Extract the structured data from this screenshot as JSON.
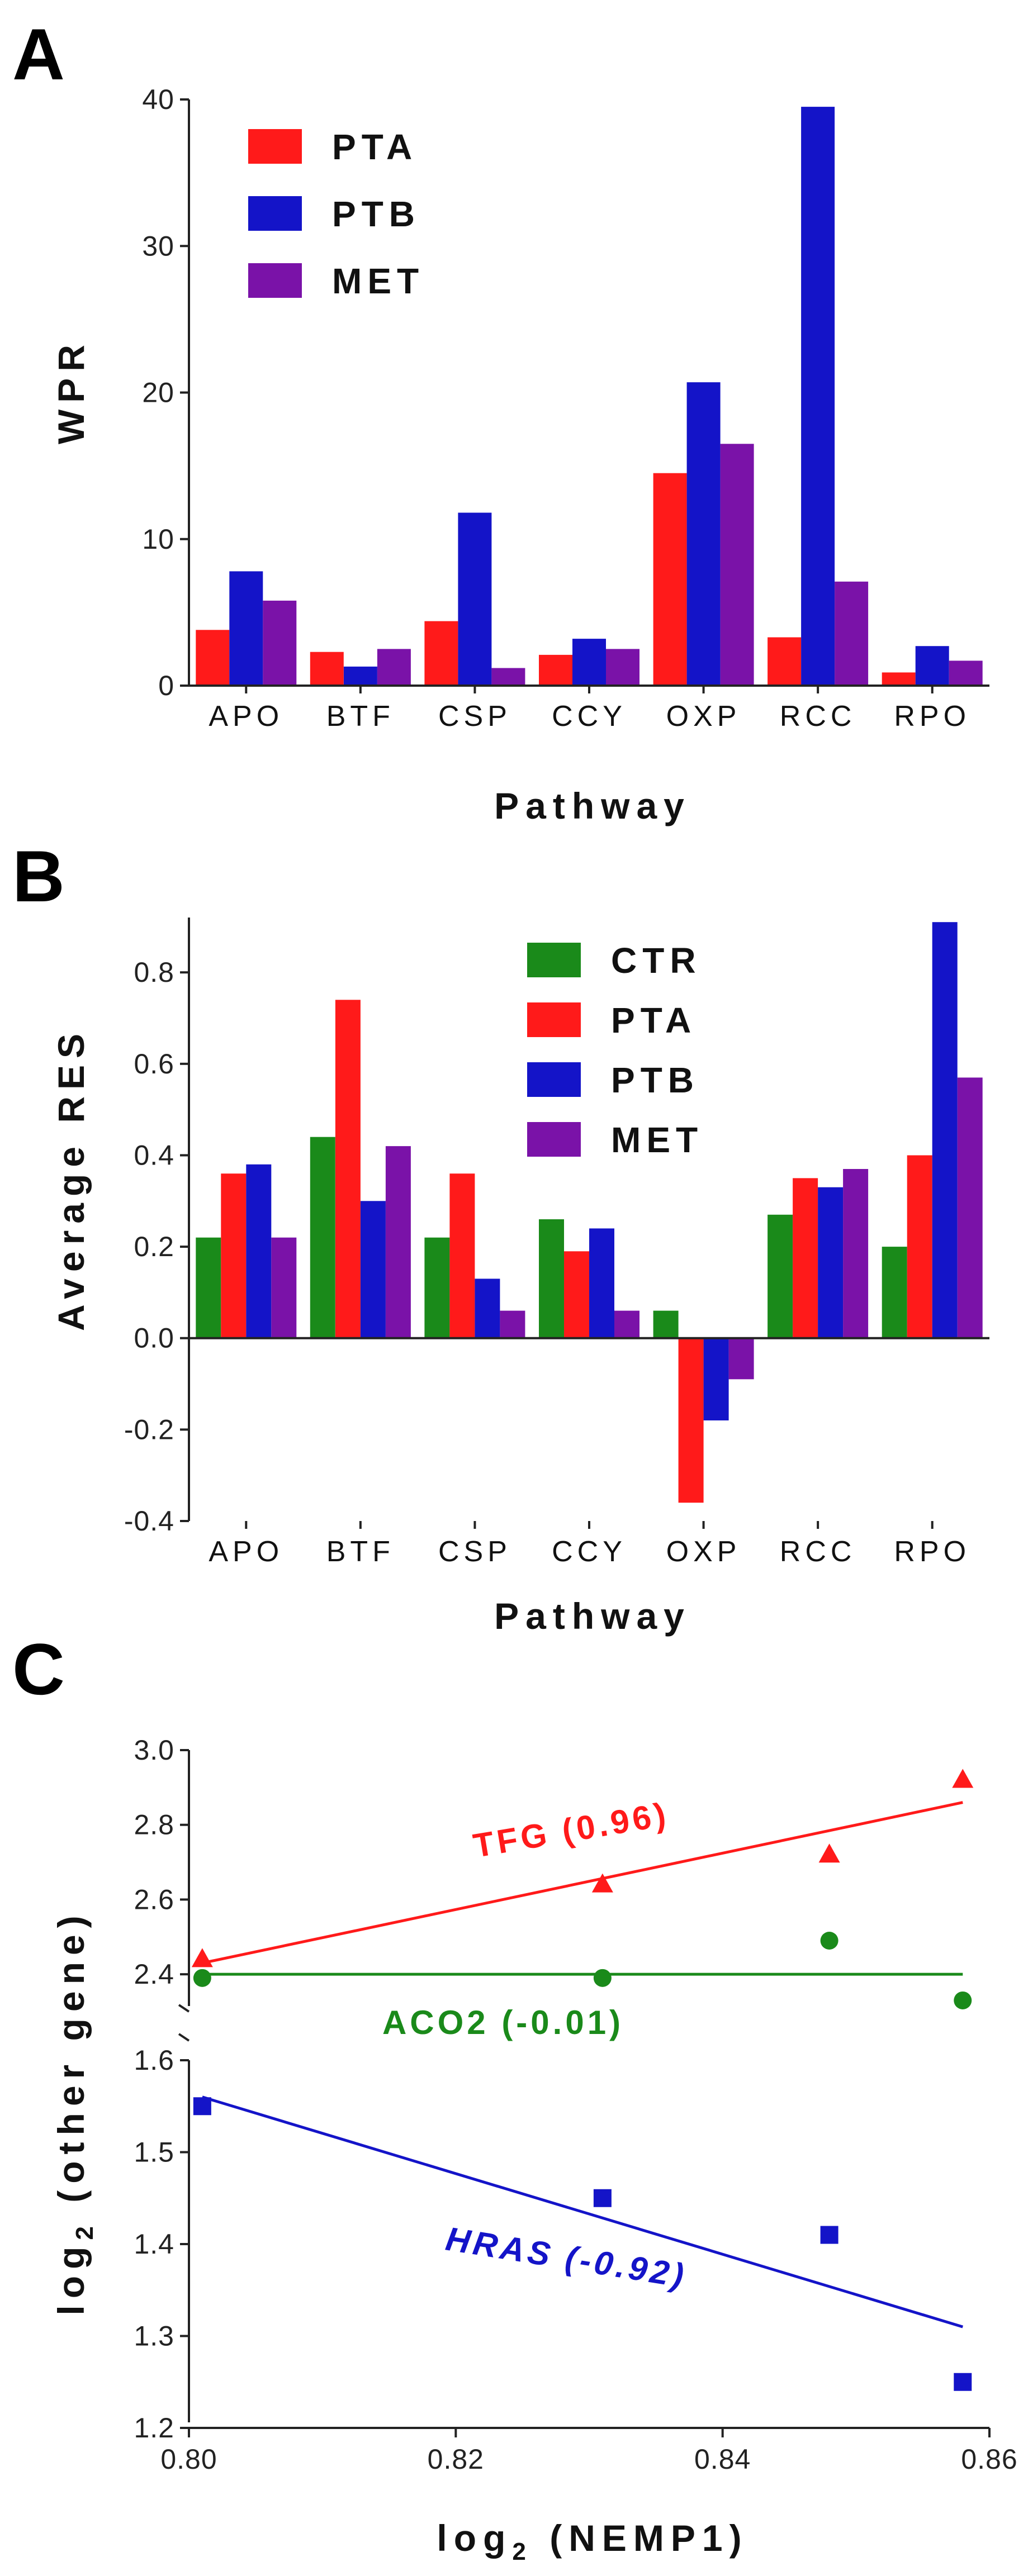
{
  "panels": {
    "a": "A",
    "b": "B",
    "c": "C"
  },
  "colors": {
    "CTR": "#1a8a1a",
    "PTA": "#ff1a1a",
    "PTB": "#1414c8",
    "MET": "#7a12a8"
  },
  "chart_data": [
    {
      "type": "bar",
      "panel": "A",
      "title": "",
      "xlabel": "Pathway",
      "ylabel": "WPR",
      "ylim": [
        0,
        40
      ],
      "yticks": [
        {
          "value": 0,
          "label": "0"
        },
        {
          "value": 10,
          "label": "10"
        },
        {
          "value": 20,
          "label": "20"
        },
        {
          "value": 30,
          "label": "30"
        },
        {
          "value": 40,
          "label": "40"
        }
      ],
      "categories": [
        "APO",
        "BTF",
        "CSP",
        "CCY",
        "OXP",
        "RCC",
        "RPO"
      ],
      "legend_position": "top-left",
      "series": [
        {
          "name": "PTA",
          "color": "#ff1a1a",
          "values": [
            3.8,
            2.3,
            4.4,
            2.1,
            14.5,
            3.3,
            0.9
          ]
        },
        {
          "name": "PTB",
          "color": "#1414c8",
          "values": [
            7.8,
            1.3,
            11.8,
            3.2,
            20.7,
            39.5,
            2.7
          ]
        },
        {
          "name": "MET",
          "color": "#7a12a8",
          "values": [
            5.8,
            2.5,
            1.2,
            2.5,
            16.5,
            7.1,
            1.7
          ]
        }
      ]
    },
    {
      "type": "bar",
      "panel": "B",
      "title": "",
      "xlabel": "Pathway",
      "ylabel": "Average RES",
      "ylim": [
        -0.4,
        0.92
      ],
      "yticks": [
        {
          "value": -0.4,
          "label": "-0.4"
        },
        {
          "value": -0.2,
          "label": "-0.2"
        },
        {
          "value": 0,
          "label": "0.0"
        },
        {
          "value": 0.2,
          "label": "0.2"
        },
        {
          "value": 0.4,
          "label": "0.4"
        },
        {
          "value": 0.6,
          "label": "0.6"
        },
        {
          "value": 0.8,
          "label": "0.8"
        }
      ],
      "categories": [
        "APO",
        "BTF",
        "CSP",
        "CCY",
        "OXP",
        "RCC",
        "RPO"
      ],
      "legend_position": "top-right",
      "series": [
        {
          "name": "CTR",
          "color": "#1a8a1a",
          "values": [
            0.22,
            0.44,
            0.22,
            0.26,
            0.06,
            0.27,
            0.2
          ]
        },
        {
          "name": "PTA",
          "color": "#ff1a1a",
          "values": [
            0.36,
            0.74,
            0.36,
            0.19,
            -0.36,
            0.35,
            0.4
          ]
        },
        {
          "name": "PTB",
          "color": "#1414c8",
          "values": [
            0.38,
            0.3,
            0.13,
            0.24,
            -0.18,
            0.33,
            0.91
          ]
        },
        {
          "name": "MET",
          "color": "#7a12a8",
          "values": [
            0.22,
            0.42,
            0.06,
            0.06,
            -0.09,
            0.37,
            0.57
          ]
        }
      ]
    },
    {
      "type": "scatter",
      "panel": "C",
      "title": "",
      "xlabel_base": "log",
      "xlabel_sub": "2",
      "xlabel_rest": " (NEMP1)",
      "ylabel_base": "log",
      "ylabel_sub": "2",
      "ylabel_rest": " (other gene)",
      "xlim": [
        0.8,
        0.86
      ],
      "xticks": [
        {
          "value": 0.8,
          "label": "0.80"
        },
        {
          "value": 0.82,
          "label": "0.82"
        },
        {
          "value": 0.84,
          "label": "0.84"
        },
        {
          "value": 0.86,
          "label": "0.86"
        }
      ],
      "upper_segment": {
        "ylim": [
          2.3,
          3.0
        ],
        "yticks": [
          {
            "value": 2.4,
            "label": "2.4"
          },
          {
            "value": 2.6,
            "label": "2.6"
          },
          {
            "value": 2.8,
            "label": "2.8"
          },
          {
            "value": 3.0,
            "label": "3.0"
          }
        ]
      },
      "lower_segment": {
        "ylim": [
          1.2,
          1.6
        ],
        "yticks": [
          {
            "value": 1.2,
            "label": "1.2"
          },
          {
            "value": 1.3,
            "label": "1.3"
          },
          {
            "value": 1.4,
            "label": "1.4"
          },
          {
            "value": 1.5,
            "label": "1.5"
          },
          {
            "value": 1.6,
            "label": "1.6"
          }
        ]
      },
      "series": [
        {
          "name": "TFG",
          "label": "TFG (0.96)",
          "correlation": 0.96,
          "color": "#ff1a1a",
          "marker": "triangle",
          "segment": "upper",
          "x": [
            0.801,
            0.831,
            0.848,
            0.858
          ],
          "y": [
            2.44,
            2.64,
            2.72,
            2.92
          ],
          "fit": [
            [
              0.801,
              2.43
            ],
            [
              0.858,
              2.86
            ]
          ]
        },
        {
          "name": "ACO2",
          "label": "ACO2 (-0.01)",
          "correlation": -0.01,
          "color": "#1a8a1a",
          "marker": "circle",
          "segment": "upper",
          "x": [
            0.801,
            0.831,
            0.848,
            0.858
          ],
          "y": [
            2.39,
            2.39,
            2.49,
            2.33
          ],
          "fit": [
            [
              0.801,
              2.4
            ],
            [
              0.858,
              2.4
            ]
          ]
        },
        {
          "name": "HRAS",
          "label": "HRAS (-0.92)",
          "correlation": -0.92,
          "color": "#1414c8",
          "marker": "square",
          "segment": "lower",
          "x": [
            0.801,
            0.831,
            0.848,
            0.858
          ],
          "y": [
            1.55,
            1.45,
            1.41,
            1.25
          ],
          "fit": [
            [
              0.801,
              1.56
            ],
            [
              0.858,
              1.31
            ]
          ]
        }
      ]
    }
  ]
}
